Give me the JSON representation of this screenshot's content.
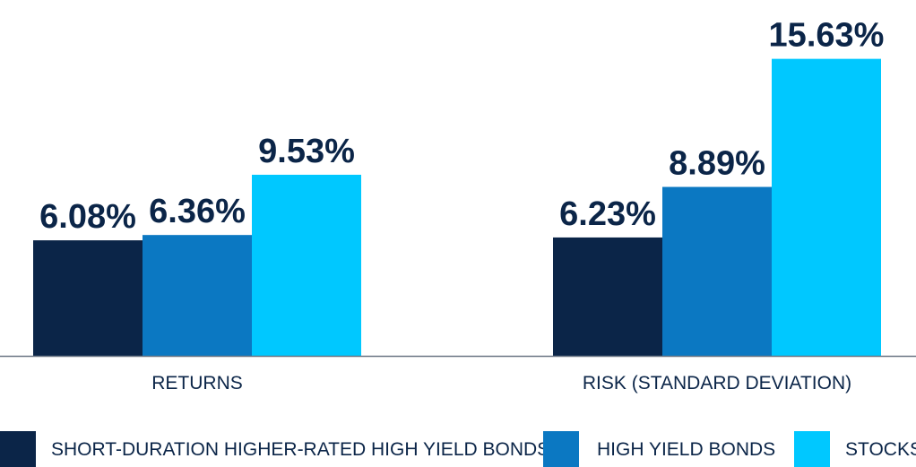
{
  "chart_data": {
    "type": "bar",
    "categories": [
      "RETURNS",
      "RISK (STANDARD DEVIATION)"
    ],
    "series": [
      {
        "name": "SHORT-DURATION HIGHER-RATED HIGH YIELD BONDS",
        "values": [
          6.08,
          6.23
        ],
        "color": "#0b2548"
      },
      {
        "name": "HIGH YIELD BONDS",
        "values": [
          6.36,
          8.89
        ],
        "color": "#0b78c2"
      },
      {
        "name": "STOCKS",
        "values": [
          9.53,
          15.63
        ],
        "color": "#00c8ff"
      }
    ],
    "value_labels": [
      [
        "6.08%",
        "6.23%"
      ],
      [
        "6.36%",
        "8.89%"
      ],
      [
        "9.53%",
        "15.63%"
      ]
    ],
    "ylim": [
      0,
      16
    ],
    "grid": false,
    "legend_position": "bottom",
    "text_color": "#0b2548",
    "axis_color": "#6b7785"
  }
}
